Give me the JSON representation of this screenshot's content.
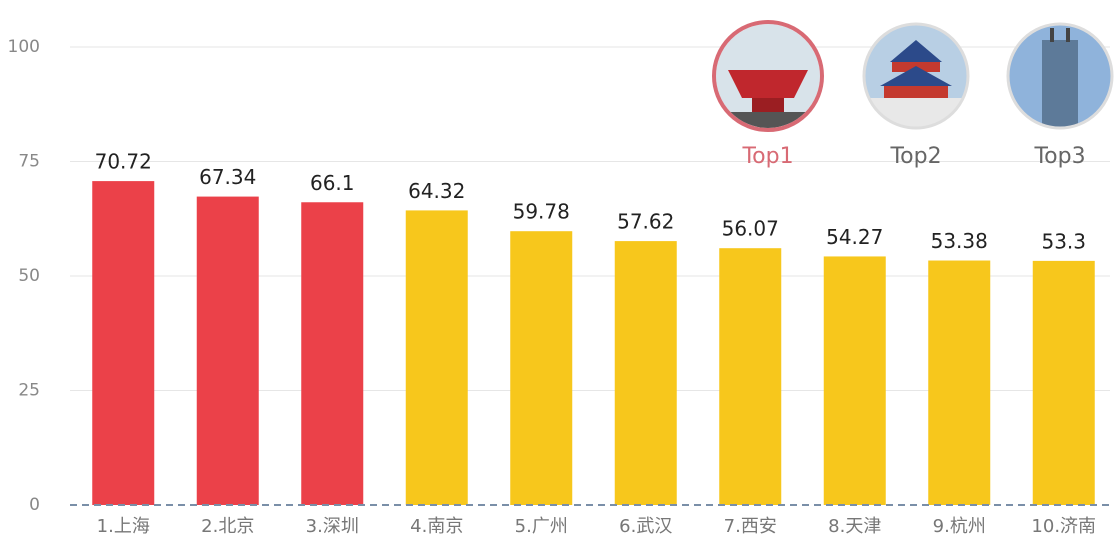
{
  "chart_data": {
    "type": "bar",
    "categories": [
      "1.上海",
      "2.北京",
      "3.深圳",
      "4.南京",
      "5.广州",
      "6.武汉",
      "7.西安",
      "8.天津",
      "9.杭州",
      "10.济南"
    ],
    "values": [
      70.72,
      67.34,
      66.1,
      64.32,
      59.78,
      57.62,
      56.07,
      54.27,
      53.38,
      53.3
    ],
    "colors": [
      "#eb4149",
      "#eb4149",
      "#eb4149",
      "#f7c71c",
      "#f7c71c",
      "#f7c71c",
      "#f7c71c",
      "#f7c71c",
      "#f7c71c",
      "#f7c71c"
    ],
    "ylim": [
      0,
      100
    ],
    "yticks": [
      0,
      25,
      50,
      75,
      100
    ],
    "grid": true,
    "annotations": [
      "Top1",
      "Top2",
      "Top3"
    ]
  }
}
